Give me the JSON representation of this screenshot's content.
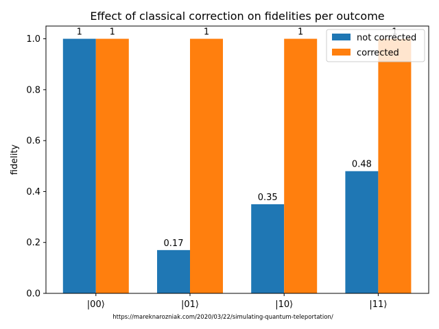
{
  "chart_data": {
    "type": "bar",
    "title": "Effect of classical correction on fidelities per outcome",
    "xlabel": "",
    "ylabel": "fidelity",
    "categories": [
      "|00⟩",
      "|01⟩",
      "|10⟩",
      "|11⟩"
    ],
    "series": [
      {
        "name": "not corrected",
        "color": "#1f77b4",
        "values": [
          1,
          0.17,
          0.35,
          0.48
        ],
        "labels": [
          "1",
          "0.17",
          "0.35",
          "0.48"
        ]
      },
      {
        "name": "corrected",
        "color": "#ff7f0e",
        "values": [
          1,
          1,
          1,
          1
        ],
        "labels": [
          "1",
          "1",
          "1",
          "1"
        ]
      }
    ],
    "ylim": [
      0,
      1.05
    ],
    "yticks": [
      0.0,
      0.2,
      0.4,
      0.6,
      0.8,
      1.0
    ],
    "ytick_labels": [
      "0.0",
      "0.2",
      "0.4",
      "0.6",
      "0.8",
      "1.0"
    ],
    "grid": false,
    "legend_position": "top-right",
    "footnote": "https://mareknarozniak.com/2020/03/22/simulating-quantum-teleportation/"
  }
}
